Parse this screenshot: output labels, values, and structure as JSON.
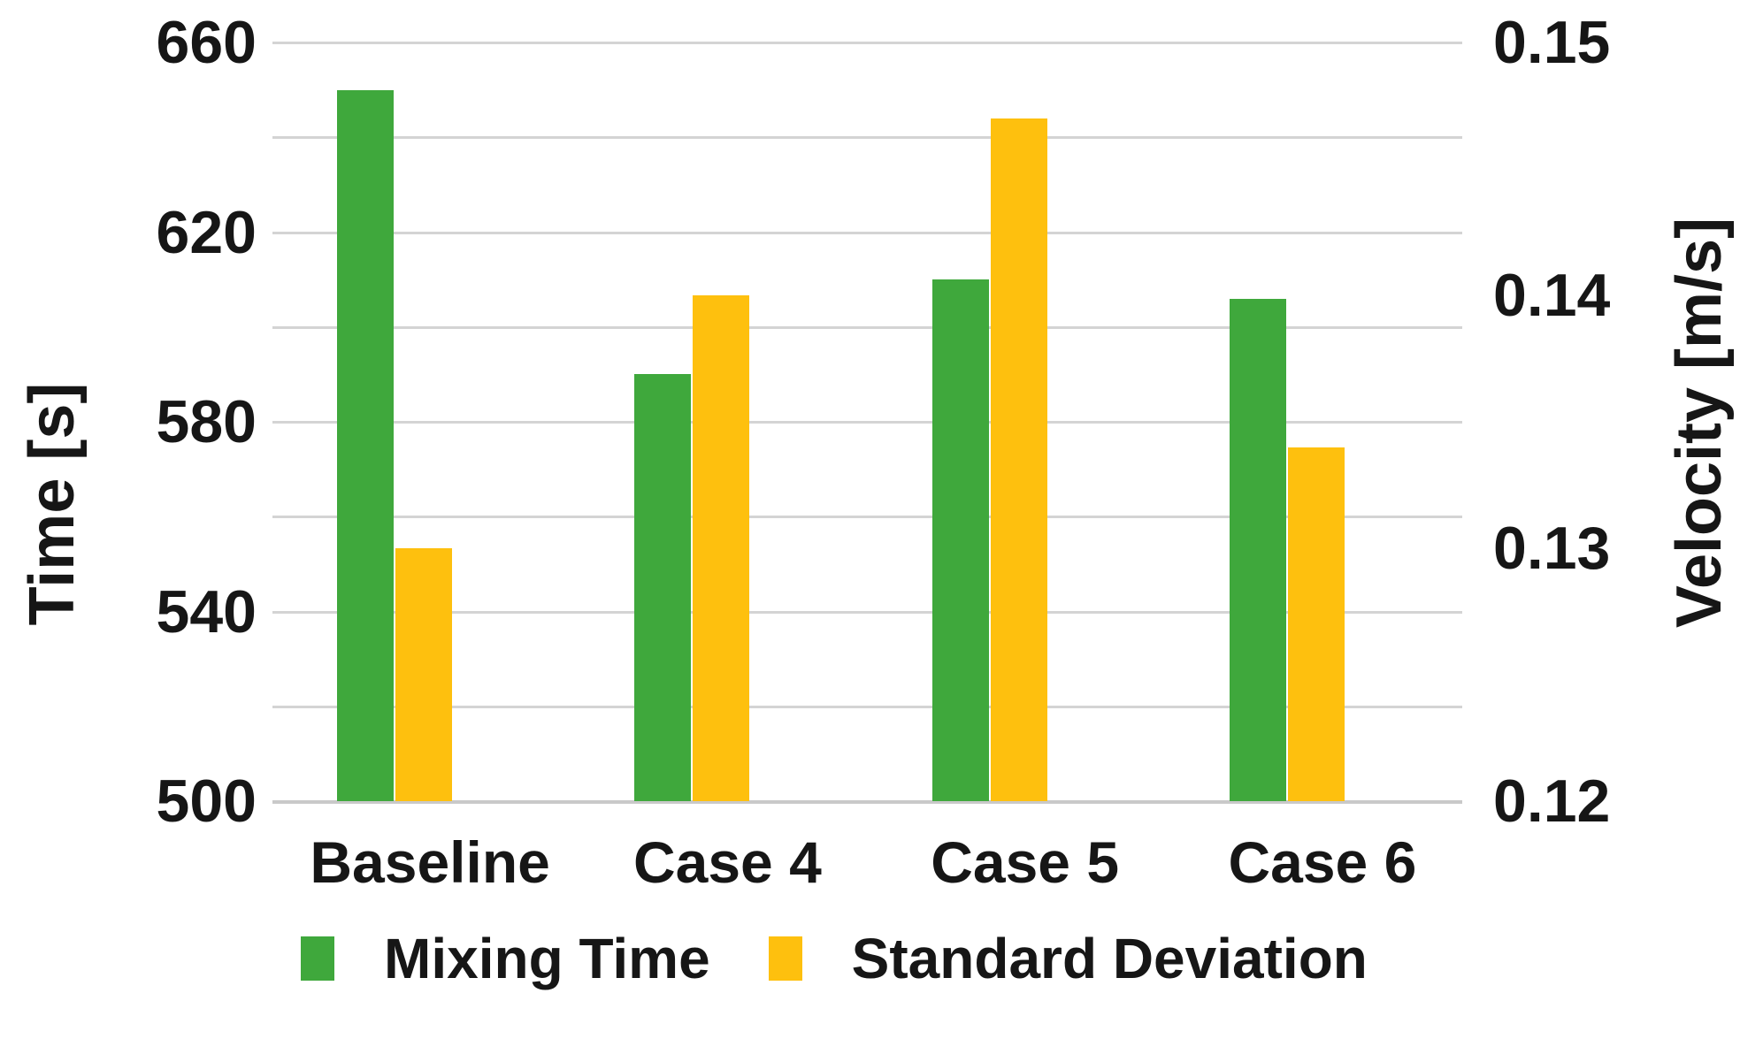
{
  "chart_data": {
    "type": "bar",
    "title": "",
    "categories": [
      "Baseline",
      "Case 4",
      "Case 5",
      "Case 6"
    ],
    "series": [
      {
        "name": "Mixing Time",
        "axis": "left",
        "color": "#3fa83c",
        "values": [
          650,
          590,
          610,
          606
        ]
      },
      {
        "name": "Standard Deviation",
        "axis": "right",
        "color": "#fec00e",
        "values": [
          0.13,
          0.14,
          0.147,
          0.134
        ]
      }
    ],
    "left_axis": {
      "label": "Time [s]",
      "min": 500,
      "max": 660,
      "tick_labels": [
        660,
        620,
        580,
        540,
        500
      ],
      "grid_step": 20
    },
    "right_axis": {
      "label": "Velocity [m/s]",
      "min": 0.12,
      "max": 0.15,
      "tick_labels": [
        "0.15",
        "0.14",
        "0.13",
        "0.12"
      ],
      "tick_values": [
        0.15,
        0.14,
        0.13,
        0.12
      ]
    },
    "grid": true,
    "legend_position": "bottom",
    "legend_entries": [
      "Mixing Time",
      "Standard Deviation"
    ]
  },
  "colors": {
    "grid": "#d4d4d4",
    "axis_line": "#c9c9c9",
    "text": "#161616",
    "background": "#ffffff",
    "mixing_time_green": "#3fa83c",
    "standard_deviation_gold": "#fec00e"
  }
}
